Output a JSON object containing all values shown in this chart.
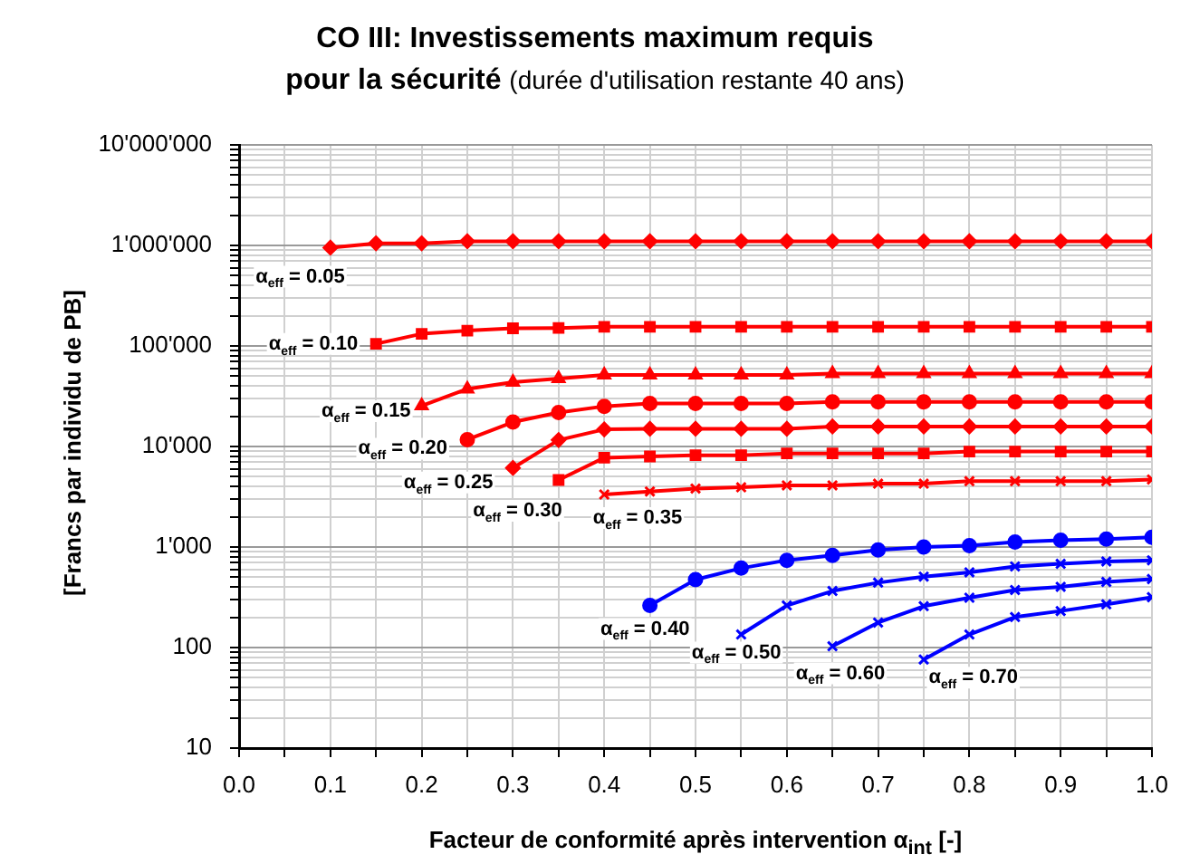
{
  "chart_data": {
    "type": "line",
    "title": "CO III: Investissements maximum requis pour la sécurité",
    "subtitle": "(durée d'utilisation restante 40 ans)",
    "xlabel": "Facteur de conformité après intervention α$_{int}$ [-]",
    "ylabel": "[Francs par  individu de PB]",
    "log": "y",
    "grid": true,
    "legend": false,
    "line_style": "solid",
    "xlim": [
      0,
      1
    ],
    "xticks": [
      {
        "value": 0,
        "label": "0.0"
      },
      {
        "value": 0.05,
        "label": null
      },
      0.1,
      {
        "value": 0.15,
        "label": null
      },
      0.2,
      {
        "value": 0.25,
        "label": null
      },
      0.3,
      {
        "value": 0.35,
        "label": null
      },
      0.4,
      {
        "value": 0.45,
        "label": null
      },
      0.5,
      {
        "value": 0.55,
        "label": null
      },
      0.6,
      {
        "value": 0.65,
        "label": null
      },
      0.7,
      {
        "value": 0.75,
        "label": null
      },
      0.8,
      {
        "value": 0.85,
        "label": null
      },
      0.9,
      {
        "value": 0.95,
        "label": null
      },
      {
        "value": 1,
        "label": "1.0"
      }
    ],
    "ylim": [
      10,
      10000000
    ],
    "yticks": [
      10,
      {
        "value": 20,
        "label": null
      },
      {
        "value": 30,
        "label": null
      },
      {
        "value": 40,
        "label": null
      },
      {
        "value": 50,
        "label": null
      },
      {
        "value": 60,
        "label": null
      },
      {
        "value": 70,
        "label": null
      },
      {
        "value": 80,
        "label": null
      },
      {
        "value": 90,
        "label": null
      },
      100,
      {
        "value": 200,
        "label": null
      },
      {
        "value": 300,
        "label": null
      },
      {
        "value": 400,
        "label": null
      },
      {
        "value": 500,
        "label": null
      },
      {
        "value": 600,
        "label": null
      },
      {
        "value": 700,
        "label": null
      },
      {
        "value": 800,
        "label": null
      },
      {
        "value": 900,
        "label": null
      },
      {
        "value": 1000,
        "label": "1'000"
      },
      {
        "value": 2000,
        "label": null
      },
      {
        "value": 3000,
        "label": null
      },
      {
        "value": 4000,
        "label": null
      },
      {
        "value": 5000,
        "label": null
      },
      {
        "value": 6000,
        "label": null
      },
      {
        "value": 7000,
        "label": null
      },
      {
        "value": 8000,
        "label": null
      },
      {
        "value": 9000,
        "label": null
      },
      {
        "value": 10000,
        "label": "10'000"
      },
      {
        "value": 20000,
        "label": null
      },
      {
        "value": 30000,
        "label": null
      },
      {
        "value": 40000,
        "label": null
      },
      {
        "value": 50000,
        "label": null
      },
      {
        "value": 60000,
        "label": null
      },
      {
        "value": 70000,
        "label": null
      },
      {
        "value": 80000,
        "label": null
      },
      {
        "value": 90000,
        "label": null
      },
      {
        "value": 100000,
        "label": "100'000"
      },
      {
        "value": 200000,
        "label": null
      },
      {
        "value": 300000,
        "label": null
      },
      {
        "value": 400000,
        "label": null
      },
      {
        "value": 500000,
        "label": null
      },
      {
        "value": 600000,
        "label": null
      },
      {
        "value": 700000,
        "label": null
      },
      {
        "value": 800000,
        "label": null
      },
      {
        "value": 900000,
        "label": null
      },
      {
        "value": 1000000,
        "label": "1'000'000"
      },
      {
        "value": 2000000,
        "label": null
      },
      {
        "value": 3000000,
        "label": null
      },
      {
        "value": 4000000,
        "label": null
      },
      {
        "value": 5000000,
        "label": null
      },
      {
        "value": 6000000,
        "label": null
      },
      {
        "value": 7000000,
        "label": null
      },
      {
        "value": 8000000,
        "label": null
      },
      {
        "value": 9000000,
        "label": null
      },
      {
        "value": 10000000,
        "label": "10'000'000"
      }
    ],
    "series": [
      {
        "name": "α$_{eff}$ = 0.05",
        "color": "#ff0000",
        "marker": "diamond",
        "x": [
          0.1,
          0.15,
          0.2,
          0.25,
          0.3,
          0.35,
          0.4,
          0.45,
          0.5,
          0.55,
          0.6,
          0.65,
          0.7,
          0.75,
          0.8,
          0.85,
          0.9,
          0.95,
          1
        ],
        "values": [
          950000,
          1050000,
          1050000,
          1100000,
          1100000,
          1100000,
          1100000,
          1100000,
          1100000,
          1100000,
          1100000,
          1100000,
          1100000,
          1100000,
          1100000,
          1100000,
          1100000,
          1100000,
          1100000
        ]
      },
      {
        "name": "α$_{eff}$ = 0.10",
        "color": "#ff0000",
        "marker": "square",
        "x": [
          0.15,
          0.2,
          0.25,
          0.3,
          0.35,
          0.4,
          0.45,
          0.5,
          0.55,
          0.6,
          0.65,
          0.7,
          0.75,
          0.8,
          0.85,
          0.9,
          0.95,
          1
        ],
        "values": [
          105000,
          132000,
          142000,
          150000,
          151000,
          155000,
          155000,
          155000,
          155000,
          155000,
          155000,
          155000,
          155000,
          155000,
          155000,
          155000,
          155000,
          155000
        ]
      },
      {
        "name": "α$_{eff}$ = 0.15",
        "color": "#ff0000",
        "marker": "triangle",
        "x": [
          0.2,
          0.25,
          0.3,
          0.35,
          0.4,
          0.45,
          0.5,
          0.55,
          0.6,
          0.65,
          0.7,
          0.75,
          0.8,
          0.85,
          0.9,
          0.95,
          1
        ],
        "values": [
          25400,
          37400,
          43600,
          47400,
          51500,
          51500,
          51500,
          51500,
          51500,
          53000,
          53000,
          53000,
          53000,
          53000,
          53000,
          53000,
          53000
        ]
      },
      {
        "name": "α$_{eff}$ = 0.20",
        "color": "#ff0000",
        "marker": "circle",
        "x": [
          0.25,
          0.3,
          0.35,
          0.4,
          0.45,
          0.5,
          0.55,
          0.6,
          0.65,
          0.7,
          0.75,
          0.8,
          0.85,
          0.9,
          0.95,
          1
        ],
        "values": [
          11700,
          17500,
          21800,
          25100,
          26800,
          26800,
          26800,
          26800,
          27800,
          27800,
          27800,
          27800,
          27800,
          27800,
          27800,
          27800
        ]
      },
      {
        "name": "α$_{eff}$ = 0.25",
        "color": "#ff0000",
        "marker": "diamond",
        "x": [
          0.3,
          0.35,
          0.4,
          0.45,
          0.5,
          0.55,
          0.6,
          0.65,
          0.7,
          0.75,
          0.8,
          0.85,
          0.9,
          0.95,
          1
        ],
        "values": [
          6120,
          11600,
          14800,
          15000,
          15000,
          15000,
          15000,
          15800,
          15800,
          15800,
          15800,
          15800,
          15800,
          15800,
          15800
        ]
      },
      {
        "name": "α$_{eff}$ = 0.30",
        "color": "#ff0000",
        "marker": "square",
        "x": [
          0.35,
          0.4,
          0.45,
          0.5,
          0.55,
          0.6,
          0.65,
          0.7,
          0.75,
          0.8,
          0.85,
          0.9,
          0.95,
          1
        ],
        "values": [
          4640,
          7730,
          7960,
          8190,
          8190,
          8530,
          8530,
          8530,
          8530,
          8900,
          8900,
          8900,
          8900,
          8900
        ]
      },
      {
        "name": "α$_{eff}$ = 0.35",
        "color": "#ff0000",
        "marker": "cross",
        "x": [
          0.4,
          0.45,
          0.5,
          0.55,
          0.6,
          0.65,
          0.7,
          0.75,
          0.8,
          0.85,
          0.9,
          0.95,
          1
        ],
        "values": [
          3330,
          3570,
          3820,
          3930,
          4100,
          4100,
          4270,
          4270,
          4520,
          4520,
          4520,
          4520,
          4700
        ]
      },
      {
        "name": "α$_{eff}$ = 0.40",
        "color": "#0000ff",
        "marker": "circle",
        "x": [
          0.45,
          0.5,
          0.55,
          0.6,
          0.65,
          0.7,
          0.75,
          0.8,
          0.85,
          0.9,
          0.95,
          1
        ],
        "values": [
          262,
          474,
          616,
          738,
          824,
          933,
          1000,
          1030,
          1120,
          1170,
          1200,
          1250
        ]
      },
      {
        "name": "α$_{eff}$ = 0.50",
        "color": "#0000ff",
        "marker": "cross",
        "x": [
          0.55,
          0.6,
          0.65,
          0.7,
          0.75,
          0.8,
          0.85,
          0.9,
          0.95,
          1
        ],
        "values": [
          135,
          262,
          365,
          442,
          508,
          560,
          641,
          680,
          718,
          738
        ]
      },
      {
        "name": "α$_{eff}$ = 0.60",
        "color": "#0000ff",
        "marker": "cross",
        "x": [
          0.65,
          0.7,
          0.75,
          0.8,
          0.85,
          0.9,
          0.95,
          1
        ],
        "values": [
          103,
          177,
          258,
          313,
          374,
          402,
          449,
          480
        ]
      },
      {
        "name": "α$_{eff}$ = 0.70",
        "color": "#0000ff",
        "marker": "cross",
        "x": [
          0.75,
          0.8,
          0.85,
          0.9,
          0.95,
          1
        ],
        "values": [
          76,
          135,
          201,
          231,
          269,
          317
        ]
      }
    ]
  }
}
